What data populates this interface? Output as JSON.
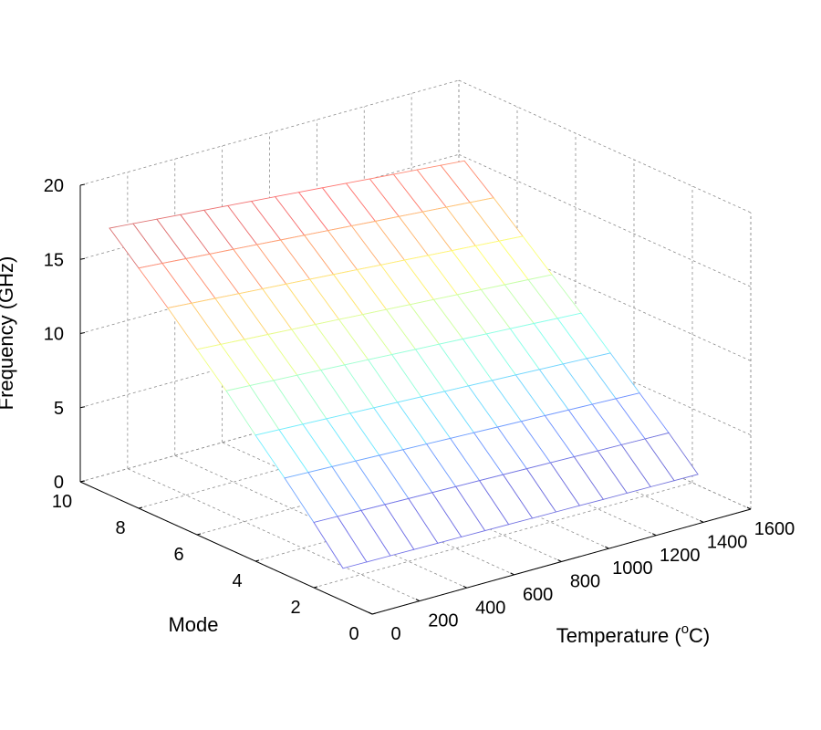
{
  "chart_data": {
    "type": "surface",
    "xlabel": "Temperature (",
    "xlabel_sup": "o",
    "xlabel_tail": "C)",
    "ylabel": "Mode",
    "zlabel": "Frequency (GHz)",
    "x_ticks": [
      0,
      200,
      400,
      600,
      800,
      1000,
      1200,
      1400,
      1600
    ],
    "y_ticks": [
      0,
      2,
      4,
      6,
      8,
      10
    ],
    "z_ticks": [
      0,
      5,
      10,
      15,
      20
    ],
    "xlim": [
      0,
      1600
    ],
    "ylim": [
      0,
      10
    ],
    "zlim": [
      0,
      20
    ],
    "grid": true,
    "colormap": "jet",
    "modes": [
      1,
      2,
      3,
      4,
      5,
      6,
      7,
      8,
      9
    ],
    "temperatures": [
      0,
      100,
      200,
      300,
      400,
      500,
      600,
      700,
      800,
      900,
      1000,
      1100,
      1200,
      1300,
      1400,
      1500
    ],
    "frequency_at_0C": [
      2.2,
      4.4,
      6.5,
      8.5,
      10.6,
      12.5,
      14.4,
      16.2,
      18.0
    ],
    "frequency_at_1500C": [
      1.9,
      3.8,
      5.6,
      7.4,
      9.2,
      10.9,
      12.6,
      14.3,
      15.9
    ]
  }
}
